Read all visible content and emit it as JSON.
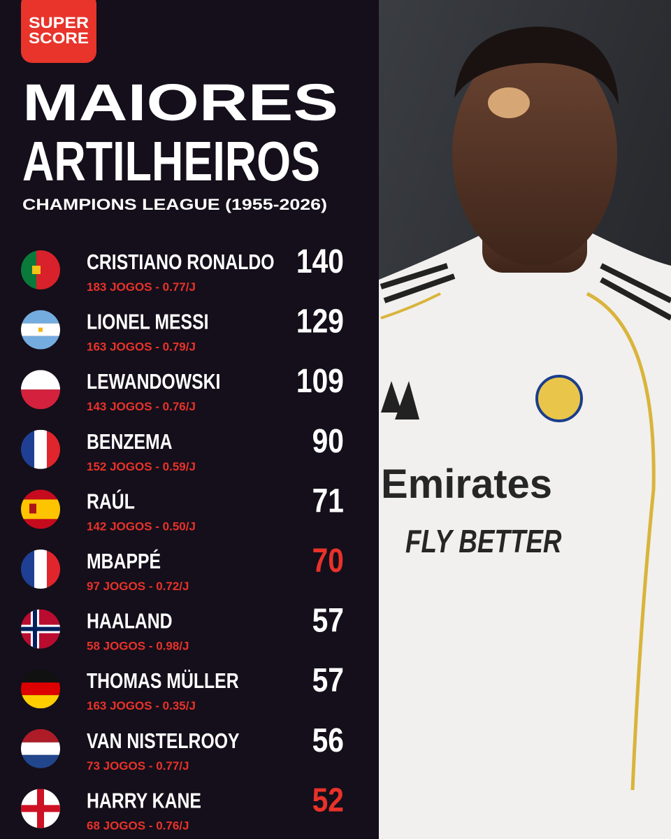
{
  "logo": {
    "line1": "SUPER",
    "line2": "SCORE"
  },
  "header": {
    "title_line1": "MAIORES",
    "title_line2": "ARTILHEIROS",
    "subtitle": "CHAMPIONS LEAGUE (1955-2026)"
  },
  "players": [
    {
      "name": "CRISTIANO RONALDO",
      "stats": "183 JOGOS - 0.77/J",
      "goals": 140,
      "highlighted": false
    },
    {
      "name": "LIONEL MESSI",
      "stats": "163 JOGOS - 0.79/J",
      "goals": 129,
      "highlighted": false
    },
    {
      "name": "LEWANDOWSKI",
      "stats": "143 JOGOS - 0.76/J",
      "goals": 109,
      "highlighted": false
    },
    {
      "name": "BENZEMA",
      "stats": "152 JOGOS - 0.59/J",
      "goals": 90,
      "highlighted": false
    },
    {
      "name": "RAÚL",
      "stats": "142 JOGOS - 0.50/J",
      "goals": 71,
      "highlighted": false
    },
    {
      "name": "MBAPPÉ",
      "stats": "97 JOGOS - 0.72/J",
      "goals": 70,
      "highlighted": true
    },
    {
      "name": "HAALAND",
      "stats": "58 JOGOS - 0.98/J",
      "goals": 57,
      "highlighted": false
    },
    {
      "name": "THOMAS MÜLLER",
      "stats": "163 JOGOS - 0.35/J",
      "goals": 57,
      "highlighted": false
    },
    {
      "name": "VAN NISTELROOY",
      "stats": "73 JOGOS - 0.77/J",
      "goals": 56,
      "highlighted": false
    },
    {
      "name": "HARRY KANE",
      "stats": "68 JOGOS - 0.76/J",
      "goals": 52,
      "highlighted": true
    }
  ],
  "photo": {
    "sponsor": "Emirates",
    "slogan": "FLY BETTER"
  }
}
